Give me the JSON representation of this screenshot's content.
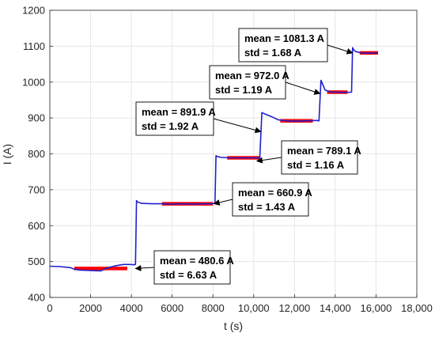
{
  "chart_data": {
    "type": "line",
    "xlabel": "t (s)",
    "ylabel": "I (A)",
    "xlim": [
      0,
      18000
    ],
    "ylim": [
      400,
      1200
    ],
    "grid": true,
    "x_ticks": [
      {
        "value": 0,
        "label": "0"
      },
      {
        "value": 2000,
        "label": "2000"
      },
      {
        "value": 4000,
        "label": "4000"
      },
      {
        "value": 6000,
        "label": "6000"
      },
      {
        "value": 8000,
        "label": "8000"
      },
      {
        "value": 10000,
        "label": "10,000"
      },
      {
        "value": 12000,
        "label": "12,000"
      },
      {
        "value": 14000,
        "label": "14,000"
      },
      {
        "value": 16000,
        "label": "16,000"
      },
      {
        "value": 18000,
        "label": "18,000"
      }
    ],
    "y_ticks": [
      {
        "value": 400,
        "label": "400"
      },
      {
        "value": 500,
        "label": "500"
      },
      {
        "value": 600,
        "label": "600"
      },
      {
        "value": 700,
        "label": "700"
      },
      {
        "value": 800,
        "label": "800"
      },
      {
        "value": 900,
        "label": "900"
      },
      {
        "value": 1000,
        "label": "1000"
      },
      {
        "value": 1100,
        "label": "1100"
      },
      {
        "value": 1200,
        "label": "1200"
      }
    ],
    "colors": {
      "signal": "#1f1fd0",
      "segments": "#ff0000",
      "grid": "#e6e6e6",
      "axis": "#262626"
    },
    "series": [
      {
        "x": [
          0,
          500,
          1000,
          1200,
          1500,
          2000,
          2500,
          2800,
          3200,
          3600,
          4000,
          4100,
          4200,
          4250,
          4300,
          4500,
          5000,
          5500,
          6000,
          6500,
          7000,
          7500,
          7900,
          8100,
          8150,
          8200,
          8400,
          8800,
          9200,
          9600,
          10000,
          10200,
          10300,
          10400,
          10600,
          10900,
          11200,
          11600,
          12000,
          12500,
          13000,
          13100,
          13200,
          13300,
          13500,
          13800,
          14100,
          14400,
          14800,
          14850,
          14900,
          15000,
          15300,
          15700,
          16100
        ],
        "y": [
          487,
          486,
          483,
          479,
          476,
          475,
          474,
          482,
          488,
          492,
          492,
          491,
          492,
          670,
          666,
          662,
          661,
          661,
          660,
          661,
          660,
          661,
          661,
          662,
          795,
          793,
          790,
          789,
          789,
          789,
          789,
          788,
          790,
          915,
          910,
          903,
          895,
          892,
          891,
          892,
          893,
          893,
          892,
          1005,
          978,
          972,
          972,
          971,
          972,
          1096,
          1090,
          1085,
          1081,
          1081,
          1081
        ]
      }
    ],
    "segments": [
      {
        "x0": 1200,
        "x1": 3800,
        "y": 480.6
      },
      {
        "x0": 5500,
        "x1": 8000,
        "y": 660.9
      },
      {
        "x0": 8700,
        "x1": 10300,
        "y": 789.1
      },
      {
        "x0": 11300,
        "x1": 12900,
        "y": 891.9
      },
      {
        "x0": 13600,
        "x1": 14600,
        "y": 972.0
      },
      {
        "x0": 15200,
        "x1": 16100,
        "y": 1081.3
      }
    ],
    "annotations": [
      {
        "line1": "mean = 480.6 A",
        "line2": "std = 6.63 A",
        "target": [
          4200,
          480.6
        ]
      },
      {
        "line1": "mean = 660.9 A",
        "line2": "std = 1.43 A",
        "target": [
          8050,
          660.9
        ]
      },
      {
        "line1": "mean = 789.1 A",
        "line2": "std = 1.16 A",
        "target": [
          10150,
          780
        ]
      },
      {
        "line1": "mean = 891.9 A",
        "line2": "std = 1.92 A",
        "target": [
          10350,
          862
        ]
      },
      {
        "line1": "mean = 972.0 A",
        "line2": "std = 1.19 A",
        "target": [
          13250,
          968
        ]
      },
      {
        "line1": "mean = 1081.3 A",
        "line2": "std = 1.68 A",
        "target": [
          14850,
          1081
        ]
      }
    ]
  }
}
